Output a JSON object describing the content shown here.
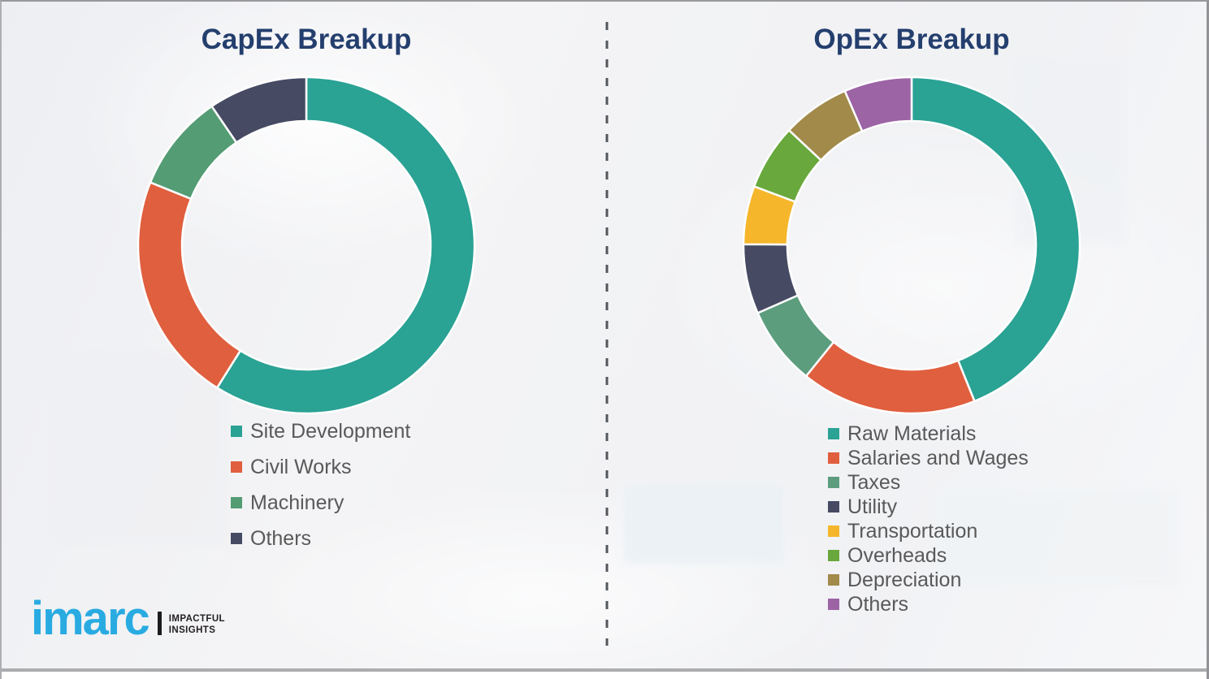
{
  "chart_data": [
    {
      "type": "pie",
      "subtype": "donut",
      "title": "CapEx Breakup",
      "title_color": "#243F6E",
      "labels": [
        "Site Development",
        "Civil Works",
        "Machinery",
        "Others"
      ],
      "values": [
        58.9,
        22.2,
        9.4,
        9.5
      ],
      "colors": [
        "#2AA294",
        "#E05F3E",
        "#539C74",
        "#464A63"
      ],
      "start_angle_deg": 0,
      "direction": "clockwise",
      "inner_radius_ratio": 0.74,
      "legend_position": "below-left",
      "data_labels_shown": false
    },
    {
      "type": "pie",
      "subtype": "donut",
      "title": "OpEx Breakup",
      "title_color": "#243F6E",
      "labels": [
        "Raw Materials",
        "Salaries and Wages",
        "Taxes",
        "Utility",
        "Transportation",
        "Overheads",
        "Depreciation",
        "Others"
      ],
      "values": [
        43.9,
        16.9,
        7.6,
        6.7,
        5.6,
        6.3,
        6.5,
        6.5
      ],
      "colors": [
        "#2AA294",
        "#E05F3E",
        "#5C9D7E",
        "#464A63",
        "#F5B62B",
        "#68A83C",
        "#A28A4A",
        "#9C63A5"
      ],
      "start_angle_deg": 0,
      "direction": "clockwise",
      "inner_radius_ratio": 0.74,
      "legend_position": "below-left",
      "data_labels_shown": false
    }
  ],
  "logo": {
    "brand": "imarc",
    "brand_color": "#29ABE2",
    "tagline_line1": "IMPACTFUL",
    "tagline_line2": "INSIGHTS"
  }
}
